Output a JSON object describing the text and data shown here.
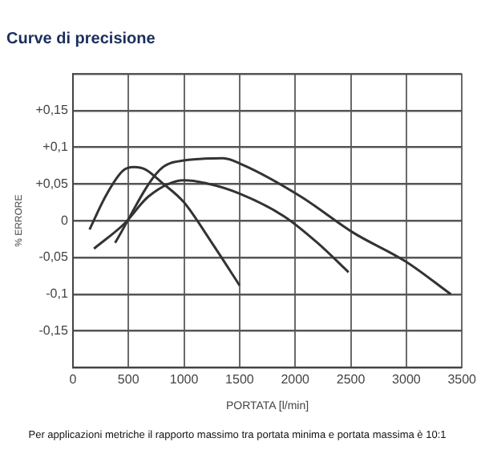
{
  "chart_data": {
    "type": "line",
    "title": "Curve di precisione",
    "xlabel": "PORTATA [l/min]",
    "ylabel": "% ERRORE",
    "annotations": [
      "Per applicazioni metriche il rapporto massimo tra portata minima e portata massima è 10:1"
    ],
    "series": [
      {
        "color": "#333333",
        "x": [
          150,
          300,
          450,
          550,
          650,
          800,
          1000,
          1250,
          1500
        ],
        "values": [
          -0.012,
          0.035,
          0.068,
          0.073,
          0.07,
          0.052,
          0.025,
          -0.03,
          -0.088
        ]
      },
      {
        "color": "#333333",
        "x": [
          190,
          470,
          680,
          1000,
          1200,
          1500,
          1900,
          2200,
          2480
        ],
        "values": [
          -0.038,
          -0.003,
          0.033,
          0.055,
          0.051,
          0.037,
          0.006,
          -0.03,
          -0.07
        ]
      },
      {
        "color": "#333333",
        "x": [
          380,
          780,
          1000,
          1350,
          1530,
          2050,
          2520,
          3000,
          3400
        ],
        "values": [
          -0.03,
          0.069,
          0.082,
          0.085,
          0.076,
          0.033,
          -0.016,
          -0.056,
          -0.1
        ]
      }
    ],
    "xlim": [
      0,
      3500
    ],
    "xticks": [
      0,
      500,
      1000,
      1500,
      2000,
      2500,
      3000,
      3500
    ],
    "ylim": [
      -0.2,
      0.2
    ],
    "yticks": [
      {
        "value": -0.2,
        "label": null
      },
      {
        "value": -0.15,
        "label": "-0,15"
      },
      {
        "value": -0.1,
        "label": "-0,1"
      },
      {
        "value": -0.05,
        "label": "-0,05"
      },
      {
        "value": 0,
        "label": "0"
      },
      {
        "value": 0.05,
        "label": "+0,05"
      },
      {
        "value": 0.1,
        "label": "+0,1"
      },
      {
        "value": 0.15,
        "label": "+0,15"
      },
      {
        "value": 0.2,
        "label": null
      }
    ],
    "grid": true,
    "legend": false,
    "marker": "none",
    "line_style": "solid"
  }
}
